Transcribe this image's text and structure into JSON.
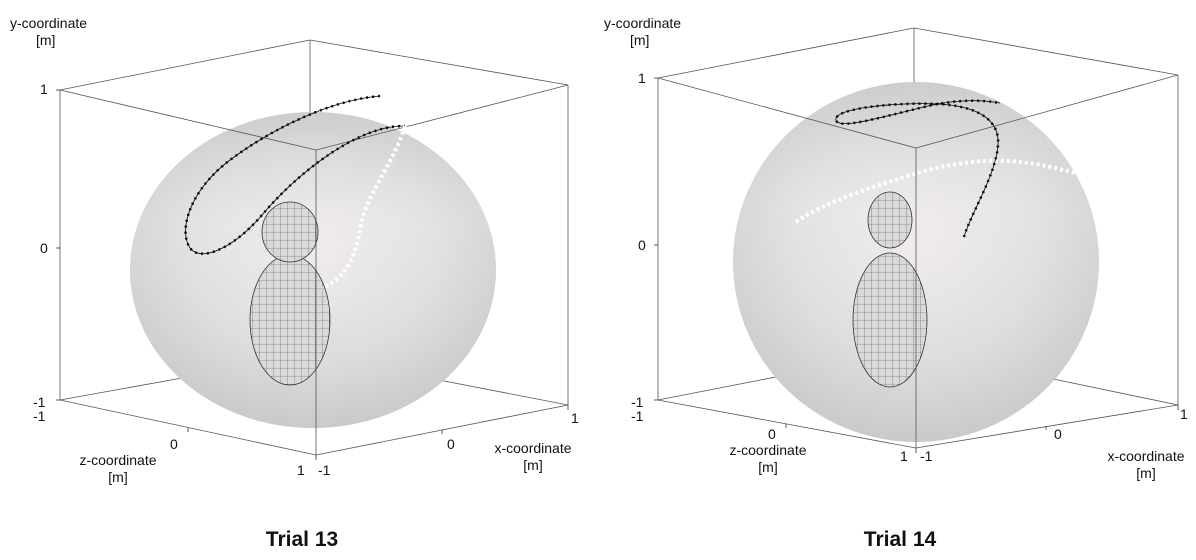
{
  "chart_data": [
    {
      "type": "3d-trajectory",
      "caption": "Trial 13",
      "y_axis": {
        "label_line1": "y-coordinate",
        "label_line2": "[m]",
        "ticks": [
          "1",
          "0",
          "-1"
        ]
      },
      "z_axis": {
        "label_line1": "z-coordinate",
        "label_line2": "[m]",
        "ticks": [
          "-1",
          "0",
          "1"
        ]
      },
      "x_axis": {
        "label_line1": "x-coordinate",
        "label_line2": "[m]",
        "ticks": [
          "-1",
          "0",
          "1"
        ]
      },
      "range": [
        -1,
        1
      ],
      "series": [
        {
          "color": "#000000",
          "marker": "square"
        },
        {
          "color": "#ffffff",
          "marker": "circle"
        }
      ]
    },
    {
      "type": "3d-trajectory",
      "caption": "Trial 14",
      "y_axis": {
        "label_line1": "y-coordinate",
        "label_line2": "[m]",
        "ticks": [
          "1",
          "0",
          "-1"
        ]
      },
      "z_axis": {
        "label_line1": "z-coordinate",
        "label_line2": "[m]",
        "ticks": [
          "-1",
          "0",
          "1"
        ]
      },
      "x_axis": {
        "label_line1": "x-coordinate",
        "label_line2": "[m]",
        "ticks": [
          "-1",
          "0",
          "1"
        ]
      },
      "range": [
        -1,
        1
      ],
      "series": [
        {
          "color": "#000000",
          "marker": "square"
        },
        {
          "color": "#ffffff",
          "marker": "circle"
        }
      ]
    }
  ]
}
